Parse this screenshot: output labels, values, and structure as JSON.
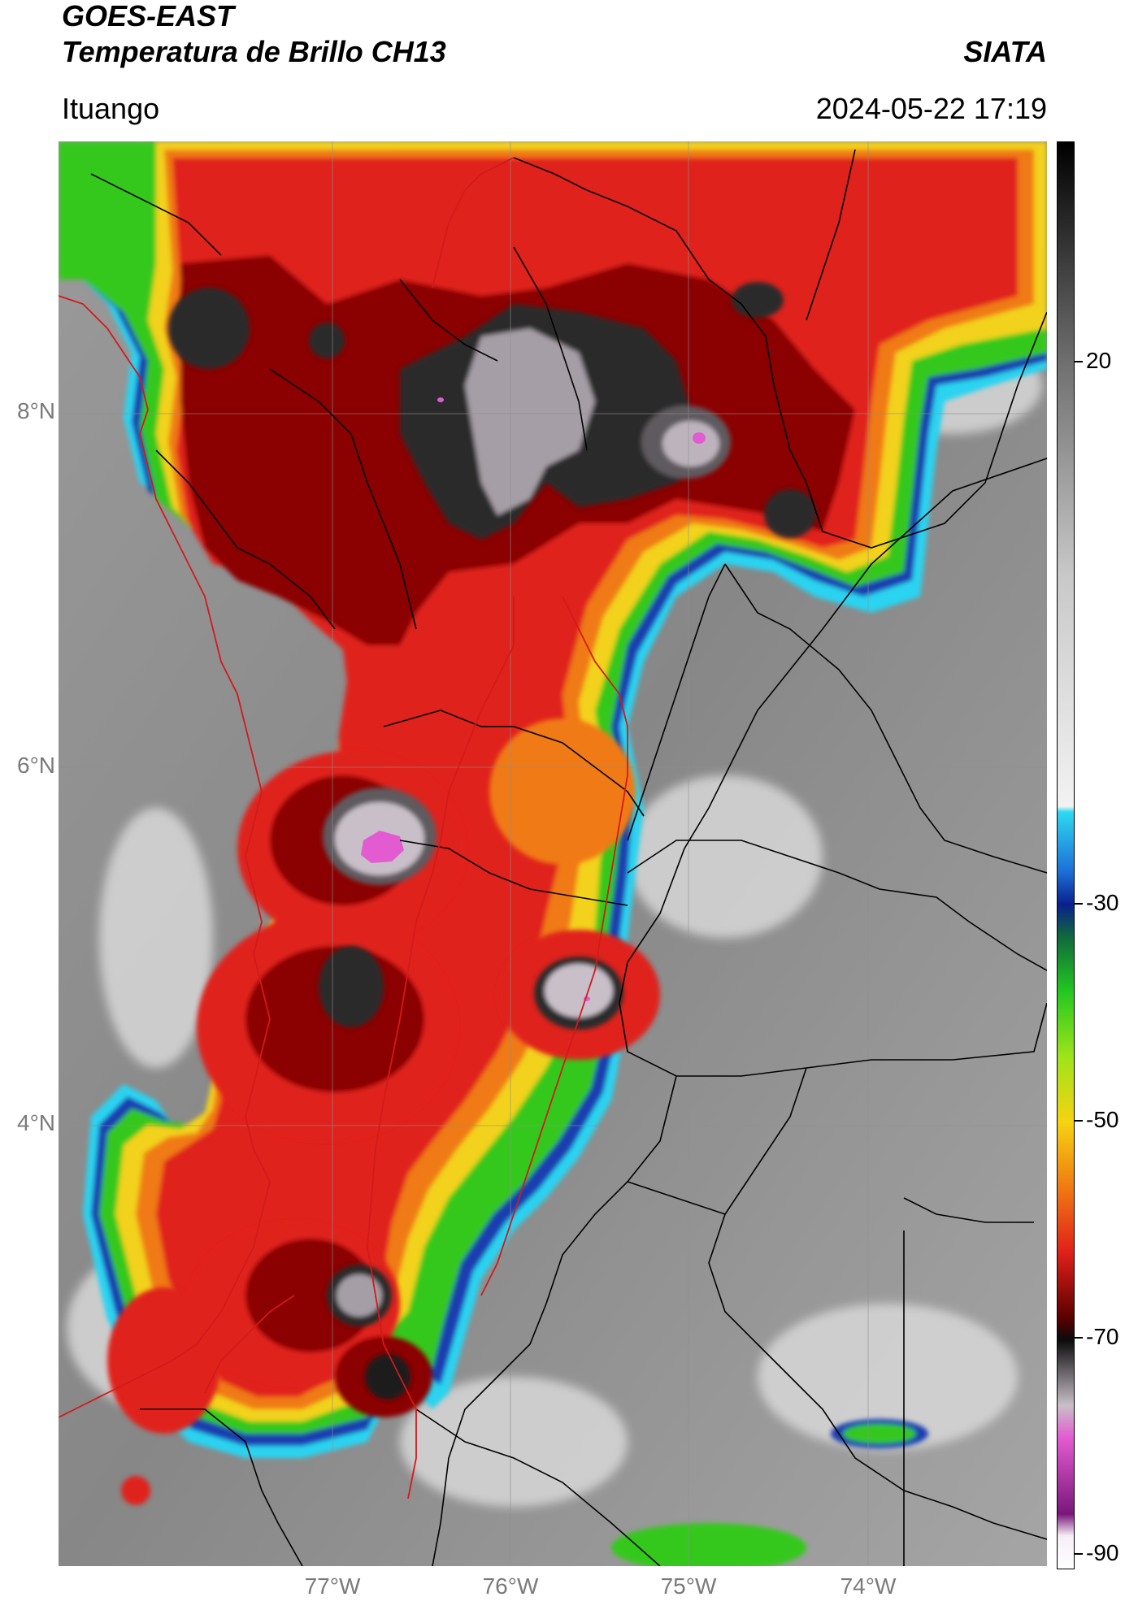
{
  "header": {
    "title_line1": "GOES-EAST",
    "title_line2": "Temperatura de Brillo CH13",
    "brand": "SIATA",
    "location": "Ituango",
    "datetime": "2024-05-22 17:19"
  },
  "map": {
    "lat_labels": [
      "8°N",
      "6°N",
      "4°N"
    ],
    "lon_labels": [
      "77°W",
      "76°W",
      "75°W",
      "74°W"
    ],
    "colors": {
      "background_gray": "#8a8a8a",
      "cloud_white": "#e6e6e6",
      "deep_red": "#8b0000",
      "red": "#e0201a",
      "orange": "#f07a12",
      "yellow": "#f2d21a",
      "green": "#35c81e",
      "blue": "#1a3cb0",
      "cyan": "#2bd3f0",
      "dark_core": "#2c2c2c",
      "pink": "#e35bd0",
      "border_red": "#d21a1a",
      "border_black": "#000000"
    }
  },
  "colorbar": {
    "tick_labels": [
      "20",
      "-30",
      "-50",
      "-70",
      "-90"
    ],
    "gradient_stops": [
      {
        "value": 40,
        "color": "#000000"
      },
      {
        "value": 20,
        "color": "#6e6e6e"
      },
      {
        "value": 0,
        "color": "#c9c9c9"
      },
      {
        "value": -21,
        "color": "#f2f2f2"
      },
      {
        "value": -21.5,
        "color": "#2fd8f2"
      },
      {
        "value": -27,
        "color": "#1d6fd6"
      },
      {
        "value": -30,
        "color": "#0a1f8e"
      },
      {
        "value": -33,
        "color": "#0f6a3c"
      },
      {
        "value": -38,
        "color": "#23c81f"
      },
      {
        "value": -44,
        "color": "#9ee41a"
      },
      {
        "value": -50,
        "color": "#f5d312"
      },
      {
        "value": -56,
        "color": "#f07a12"
      },
      {
        "value": -62,
        "color": "#e0201a"
      },
      {
        "value": -68,
        "color": "#5a0000"
      },
      {
        "value": -70,
        "color": "#0b0b0b"
      },
      {
        "value": -76,
        "color": "#c8bfc8"
      },
      {
        "value": -79,
        "color": "#e35bd0"
      },
      {
        "value": -86,
        "color": "#7a177a"
      },
      {
        "value": -88,
        "color": "#f6eef6"
      },
      {
        "value": -91,
        "color": "#ffffff"
      }
    ]
  }
}
